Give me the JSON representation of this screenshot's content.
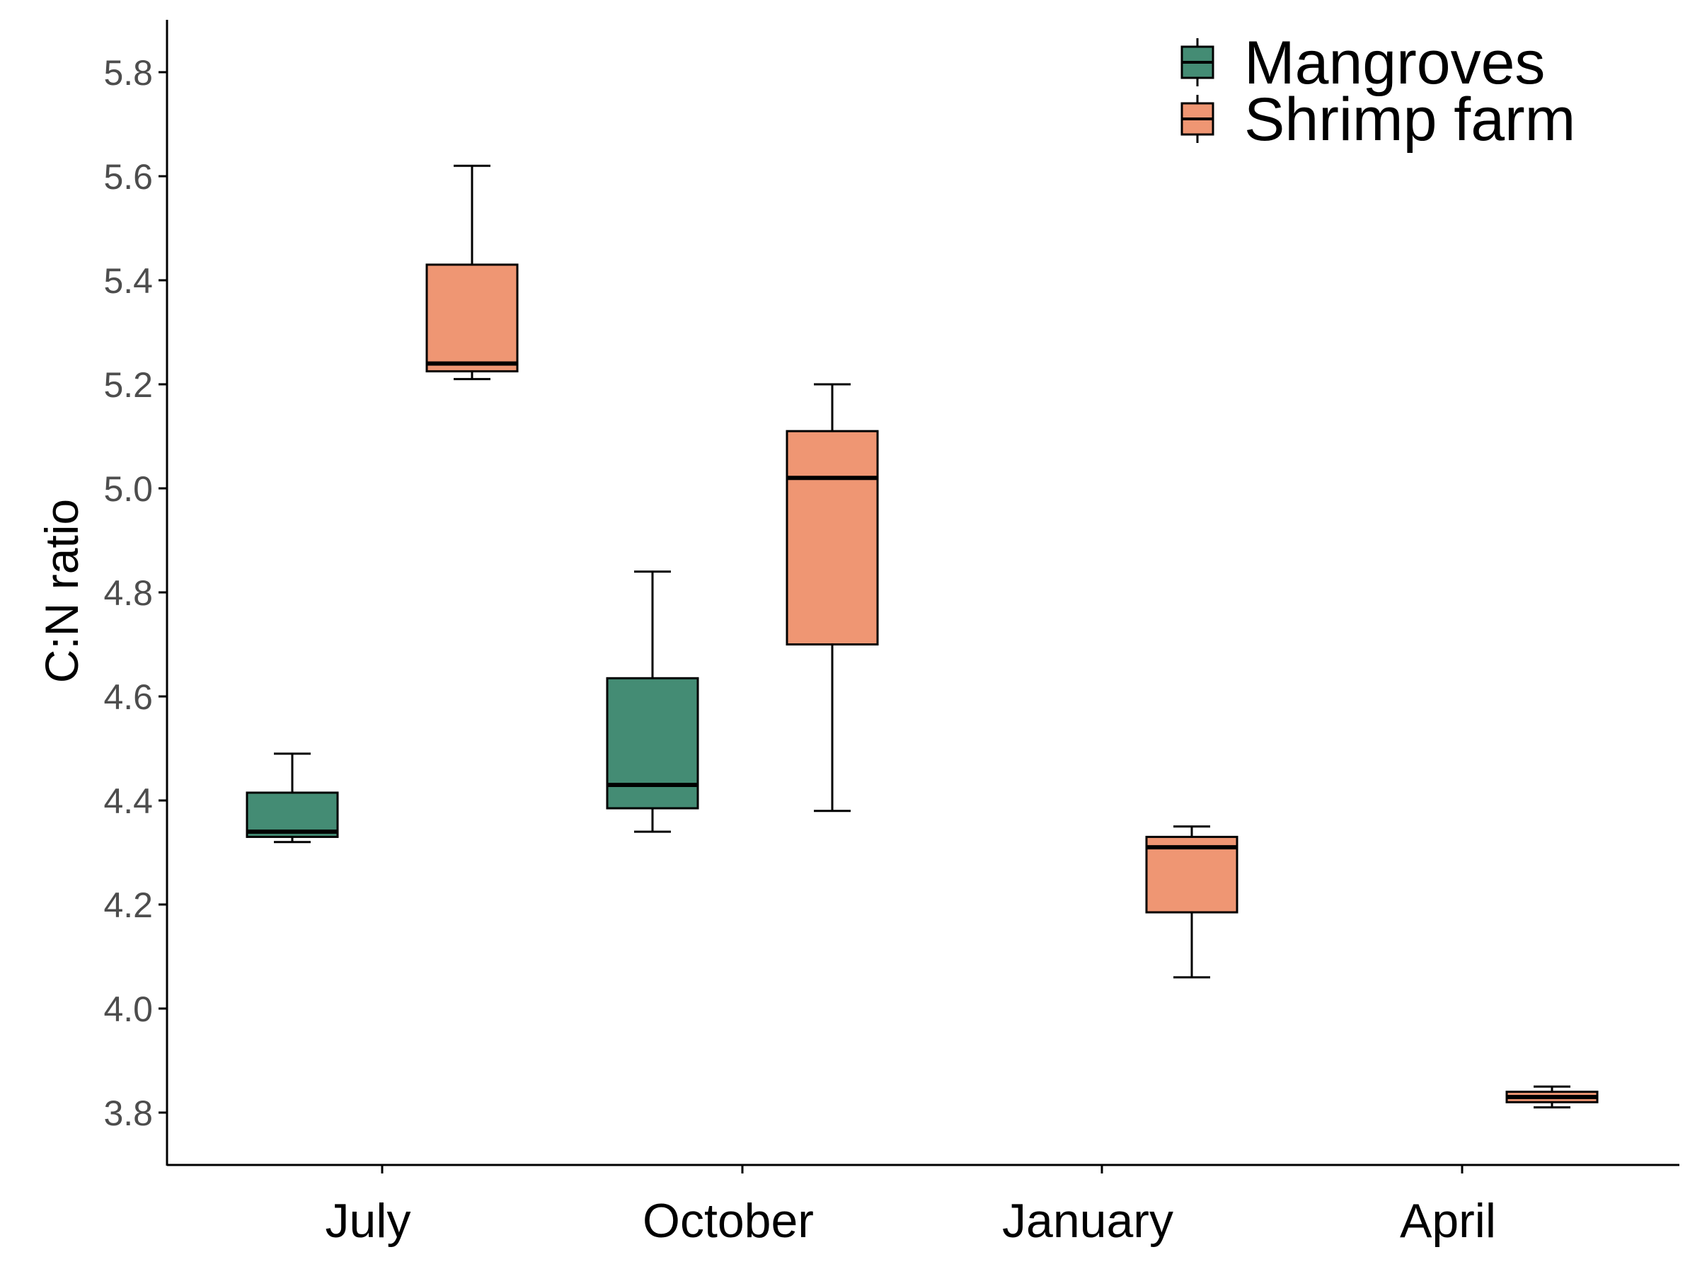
{
  "chart_data": {
    "type": "box",
    "title": "",
    "xlabel": "",
    "ylabel": "C:N ratio",
    "categories": [
      "July",
      "October",
      "January",
      "April"
    ],
    "ylim": [
      3.7,
      5.9
    ],
    "yticks": [
      3.8,
      4.0,
      4.2,
      4.4,
      4.6,
      4.8,
      5.0,
      5.2,
      5.4,
      5.6,
      5.8
    ],
    "ytick_labels": [
      "3.8",
      "4.0",
      "4.2",
      "4.4",
      "4.6",
      "4.8",
      "5.0",
      "5.2",
      "5.4",
      "5.6",
      "5.8"
    ],
    "grid": false,
    "legend_position": "top-right",
    "series": [
      {
        "name": "Mangroves",
        "color": "#448c74",
        "boxes": [
          {
            "category": "July",
            "whisker_low": 4.32,
            "q1": 4.33,
            "median": 4.34,
            "q3": 4.415,
            "whisker_high": 4.49
          },
          {
            "category": "October",
            "whisker_low": 4.34,
            "q1": 4.385,
            "median": 4.43,
            "q3": 4.635,
            "whisker_high": 4.84
          },
          null,
          null
        ]
      },
      {
        "name": "Shrimp farm",
        "color": "#ef9673",
        "boxes": [
          {
            "category": "July",
            "whisker_low": 5.21,
            "q1": 5.225,
            "median": 5.24,
            "q3": 5.43,
            "whisker_high": 5.62
          },
          {
            "category": "October",
            "whisker_low": 4.38,
            "q1": 4.7,
            "median": 5.02,
            "q3": 5.11,
            "whisker_high": 5.2
          },
          {
            "category": "January",
            "whisker_low": 4.06,
            "q1": 4.185,
            "median": 4.31,
            "q3": 4.33,
            "whisker_high": 4.35
          },
          {
            "category": "April",
            "whisker_low": 3.81,
            "q1": 3.82,
            "median": 3.83,
            "q3": 3.84,
            "whisker_high": 3.85
          }
        ]
      }
    ]
  }
}
